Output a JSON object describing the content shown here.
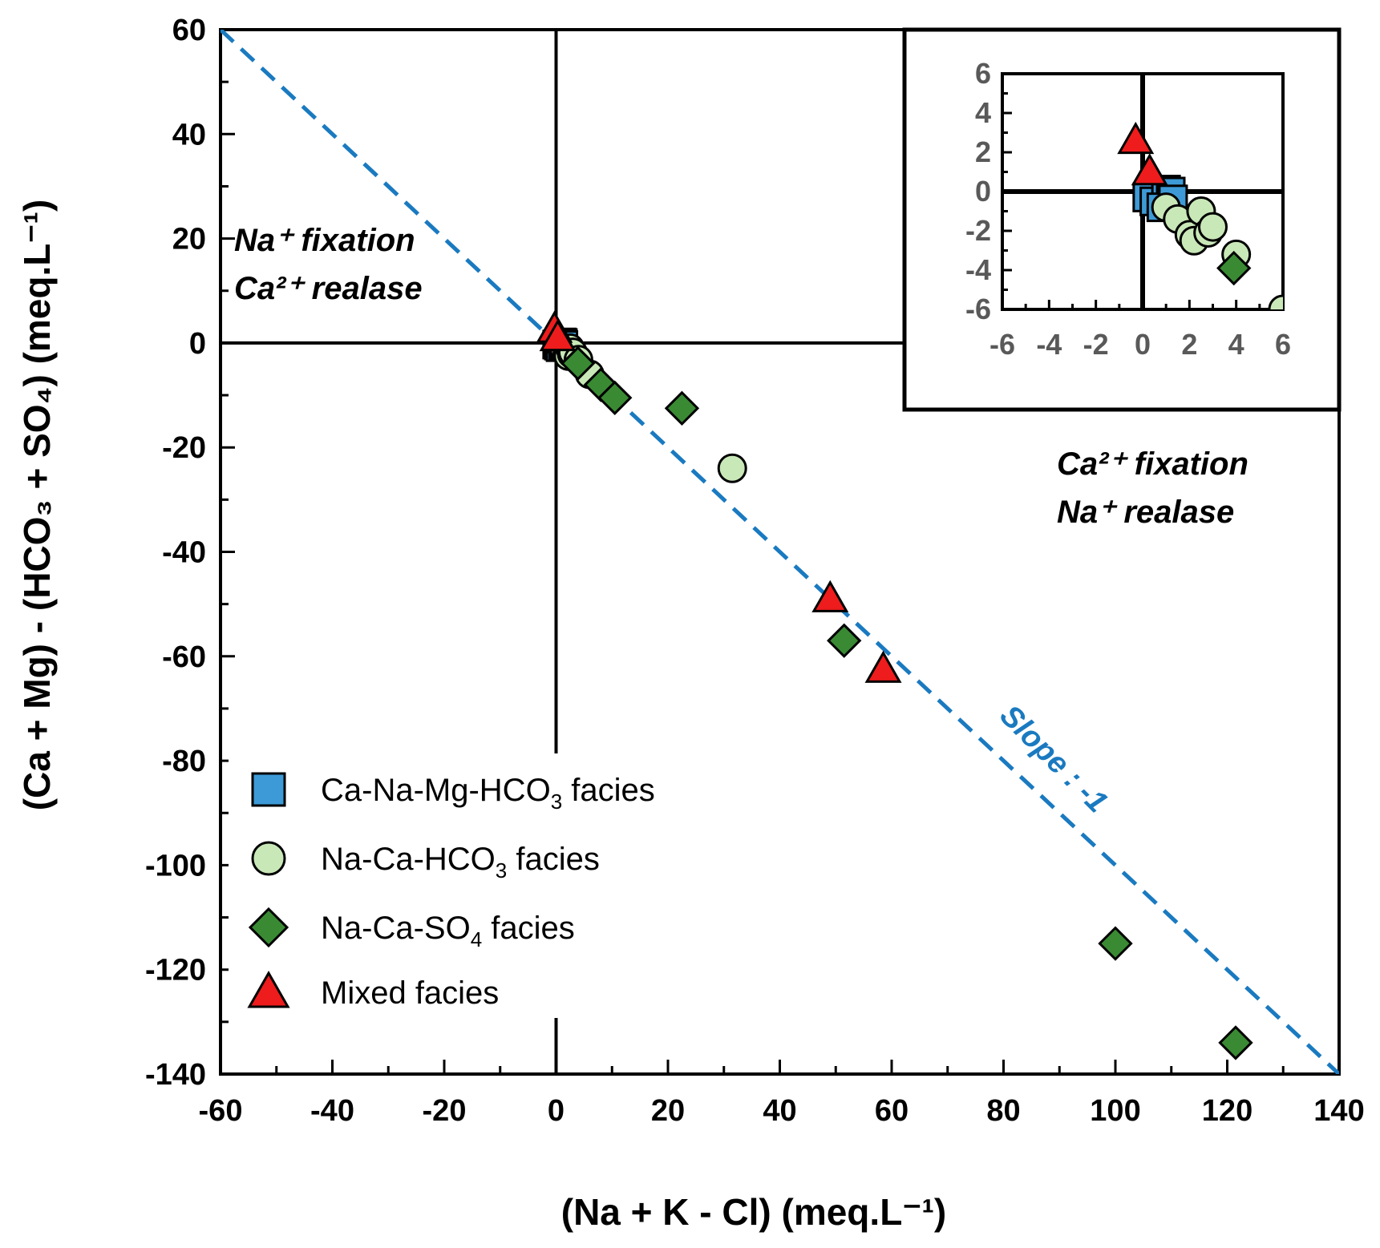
{
  "chart_data": {
    "type": "scatter",
    "title": "",
    "xlabel": "(Na + K - Cl)   (meq.L⁻¹)",
    "ylabel": "(Ca + Mg) - (HCO₃ + SO₄)   (meq.L⁻¹)",
    "xlim": [
      -60,
      140
    ],
    "ylim": [
      -140,
      60
    ],
    "x_ticks": [
      "-60",
      "-40",
      "-20",
      "0",
      "20",
      "40",
      "60",
      "80",
      "100",
      "120",
      "140"
    ],
    "y_ticks": [
      "60",
      "40",
      "20",
      "0",
      "-20",
      "-40",
      "-60",
      "-80",
      "-100",
      "-120",
      "-140"
    ],
    "reference_line": {
      "slope": -1,
      "intercept": 0,
      "label": "Slope : -1",
      "color": "#1a7ac0"
    },
    "annotations": {
      "upper_left_1": "Na⁺ fixation",
      "upper_left_2": "Ca²⁺ realase",
      "lower_right_1": "Ca²⁺ fixation",
      "lower_right_2": "Na⁺ realase"
    },
    "series": [
      {
        "name": "Ca-Na-Mg-HCO₃ facies",
        "marker": "square",
        "color": "#3d9ad6",
        "points": [
          [
            0.2,
            -0.3
          ],
          [
            0.5,
            -0.5
          ],
          [
            1.0,
            0.1
          ],
          [
            1.2,
            0.0
          ],
          [
            0.8,
            -0.8
          ],
          [
            1.3,
            -0.4
          ]
        ]
      },
      {
        "name": "Na-Ca-HCO₃ facies",
        "marker": "circle",
        "color": "#c9e8b8",
        "points": [
          [
            1.0,
            -0.8
          ],
          [
            1.5,
            -1.4
          ],
          [
            2.0,
            -2.2
          ],
          [
            2.2,
            -2.5
          ],
          [
            2.5,
            -1.0
          ],
          [
            2.8,
            -2.1
          ],
          [
            3.0,
            -1.8
          ],
          [
            4.0,
            -3.2
          ],
          [
            6,
            -6
          ],
          [
            31.5,
            -24
          ]
        ]
      },
      {
        "name": "Na-Ca-SO₄ facies",
        "marker": "diamond",
        "color": "#3a8a34",
        "points": [
          [
            3.9,
            -3.9
          ],
          [
            8,
            -8
          ],
          [
            10.5,
            -10.5
          ],
          [
            22.5,
            -12.5
          ],
          [
            51.5,
            -57
          ],
          [
            100,
            -115
          ],
          [
            121.5,
            -134
          ]
        ]
      },
      {
        "name": "Mixed facies",
        "marker": "triangle",
        "color": "#ee1c1c",
        "points": [
          [
            -0.3,
            2.6
          ],
          [
            0.3,
            1.0
          ],
          [
            49,
            -49
          ],
          [
            58.5,
            -62.5
          ]
        ]
      }
    ],
    "inset": {
      "xlim": [
        -6,
        6
      ],
      "ylim": [
        -6,
        6
      ],
      "x_ticks": [
        "-6",
        "-4",
        "-2",
        "0",
        "2",
        "4",
        "6"
      ],
      "y_ticks": [
        "6",
        "4",
        "2",
        "0",
        "-2",
        "-4",
        "-6"
      ]
    },
    "legend": {
      "position": "lower-left",
      "entries": [
        {
          "base": "Ca-Na-Mg-HCO",
          "sub": "3",
          "suffix": " facies"
        },
        {
          "base": "Na-Ca-HCO",
          "sub": "3",
          "suffix": " facies"
        },
        {
          "base": "Na-Ca-SO",
          "sub": "4",
          "suffix": " facies"
        },
        {
          "base": "Mixed facies",
          "sub": "",
          "suffix": ""
        }
      ]
    }
  }
}
